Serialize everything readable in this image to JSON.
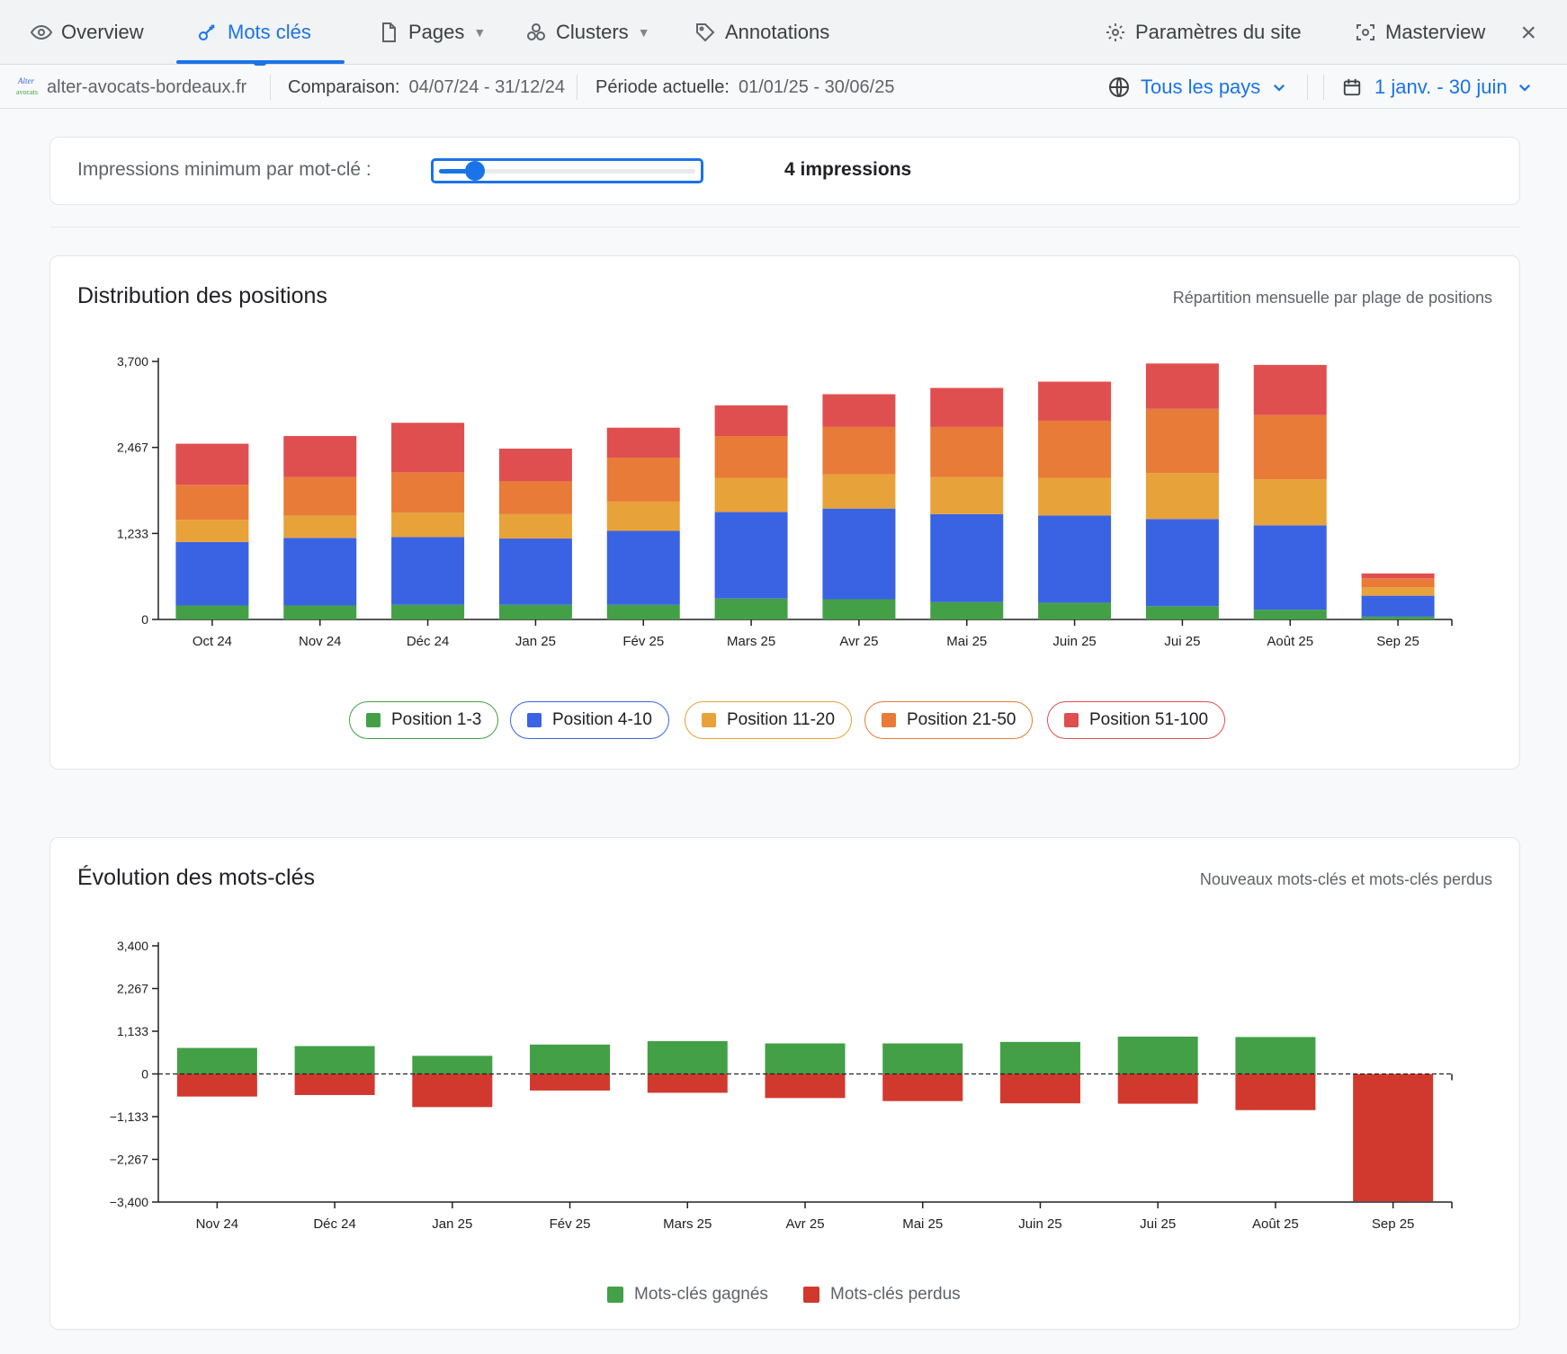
{
  "nav": {
    "tabs": [
      {
        "label": "Overview",
        "icon": "eye-icon"
      },
      {
        "label": "Mots clés",
        "icon": "key-icon",
        "active": true
      },
      {
        "label": "Pages",
        "icon": "page-icon",
        "dropdown": true
      },
      {
        "label": "Clusters",
        "icon": "clusters-icon",
        "dropdown": true
      },
      {
        "label": "Annotations",
        "icon": "tag-icon"
      },
      {
        "label": "Paramètres du site",
        "icon": "gear-icon"
      },
      {
        "label": "Masterview",
        "icon": "masterview-icon"
      }
    ],
    "close_icon": "×"
  },
  "subbar": {
    "site": "alter-avocats-bordeaux.fr",
    "comparison_label": "Comparaison:",
    "comparison_value": "04/07/24 - 31/12/24",
    "current_label": "Période actuelle:",
    "current_value": "01/01/25 - 30/06/25",
    "country": "Tous les pays",
    "date_range": "1 janv. - 30 juin"
  },
  "slider": {
    "label": "Impressions minimum par mot-clé :",
    "value_text": "4 impressions",
    "fraction": 0.14
  },
  "colors": {
    "accent": "#1a73e8",
    "p1_3": "#43a047",
    "p4_10": "#3a63e4",
    "p11_20": "#e8a23a",
    "p21_50": "#e87b37",
    "p51_100": "#e04f4f",
    "gained": "#43a047",
    "lost": "#d2392e"
  },
  "chart1": {
    "title": "Distribution des positions",
    "subtitle": "Répartition mensuelle par plage de positions"
  },
  "chart2": {
    "title": "Évolution des mots-clés",
    "subtitle": "Nouveaux mots-clés et mots-clés perdus"
  },
  "chart_data": [
    {
      "type": "bar",
      "stacked": true,
      "categories": [
        "Oct 24",
        "Nov 24",
        "Déc 24",
        "Jan 25",
        "Fév 25",
        "Mars 25",
        "Avr 25",
        "Mai 25",
        "Juin 25",
        "Jui 25",
        "Août 25",
        "Sep 25"
      ],
      "series": [
        {
          "name": "Position 1-3",
          "color": "#43a047",
          "values": [
            200,
            200,
            210,
            210,
            210,
            300,
            290,
            250,
            240,
            190,
            140,
            40
          ]
        },
        {
          "name": "Position 4-10",
          "color": "#3a63e4",
          "values": [
            910,
            970,
            970,
            950,
            1060,
            1240,
            1300,
            1260,
            1250,
            1250,
            1210,
            300
          ]
        },
        {
          "name": "Position 11-20",
          "color": "#e8a23a",
          "values": [
            320,
            320,
            350,
            350,
            420,
            490,
            490,
            530,
            540,
            660,
            660,
            120
          ]
        },
        {
          "name": "Position 21-50",
          "color": "#e87b37",
          "values": [
            500,
            550,
            580,
            470,
            630,
            600,
            680,
            720,
            820,
            920,
            920,
            130
          ]
        },
        {
          "name": "Position 51-100",
          "color": "#e04f4f",
          "values": [
            590,
            590,
            710,
            470,
            430,
            440,
            470,
            560,
            560,
            650,
            720,
            70
          ]
        }
      ],
      "yticks": [
        "0",
        "1,233",
        "2,467",
        "3,700"
      ],
      "ylim": [
        0,
        3700
      ]
    },
    {
      "type": "bar",
      "diverging": true,
      "categories": [
        "Nov 24",
        "Déc 24",
        "Jan 25",
        "Fév 25",
        "Mars 25",
        "Avr 25",
        "Mai 25",
        "Juin 25",
        "Jui 25",
        "Août 25",
        "Sep 25"
      ],
      "series": [
        {
          "name": "Mots-clés gagnés",
          "color": "#43a047",
          "values": [
            690,
            740,
            480,
            780,
            870,
            810,
            810,
            850,
            990,
            980,
            0
          ]
        },
        {
          "name": "Mots-clés perdus",
          "color": "#d2392e",
          "values": [
            -600,
            -560,
            -880,
            -440,
            -500,
            -640,
            -720,
            -780,
            -790,
            -960,
            -3380
          ]
        }
      ],
      "yticks": [
        "−3,400",
        "−2,267",
        "−1,133",
        "0",
        "1,133",
        "2,267",
        "3,400"
      ],
      "ylim": [
        -3400,
        3400
      ]
    }
  ]
}
